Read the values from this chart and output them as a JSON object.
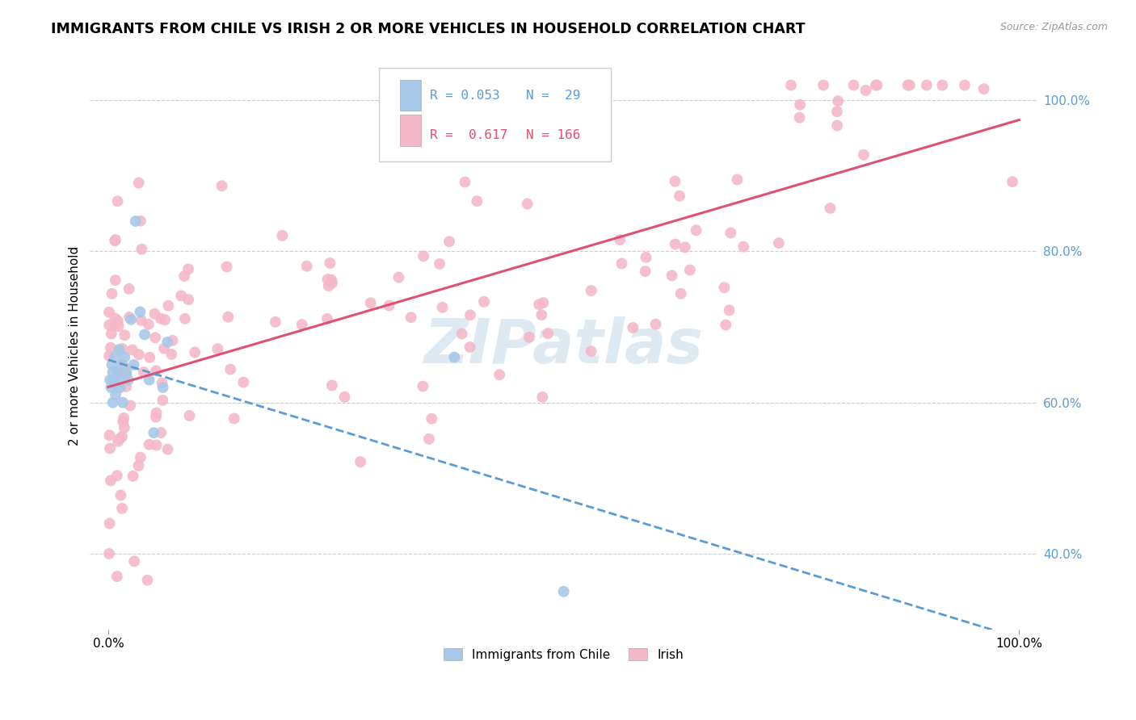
{
  "title": "IMMIGRANTS FROM CHILE VS IRISH 2 OR MORE VEHICLES IN HOUSEHOLD CORRELATION CHART",
  "source": "Source: ZipAtlas.com",
  "ylabel": "2 or more Vehicles in Household",
  "legend_label1": "Immigrants from Chile",
  "legend_label2": "Irish",
  "r1": 0.053,
  "n1": 29,
  "r2": 0.617,
  "n2": 166,
  "color_chile": "#a8c8e8",
  "color_chile_dark": "#5b9bd5",
  "color_irish": "#f4b8c8",
  "color_irish_dark": "#e05070",
  "color_grid": "#cccccc",
  "watermark": "ZIPatlas",
  "ymin": 0.3,
  "ymax": 1.05,
  "xmin": 0.0,
  "xmax": 1.0,
  "ytick_vals": [
    0.4,
    0.6,
    0.8,
    1.0
  ],
  "ytick_labels": [
    "40.0%",
    "60.0%",
    "80.0%",
    "100.0%"
  ],
  "xtick_vals": [
    0.0,
    1.0
  ],
  "xtick_labels": [
    "0.0%",
    "100.0%"
  ]
}
